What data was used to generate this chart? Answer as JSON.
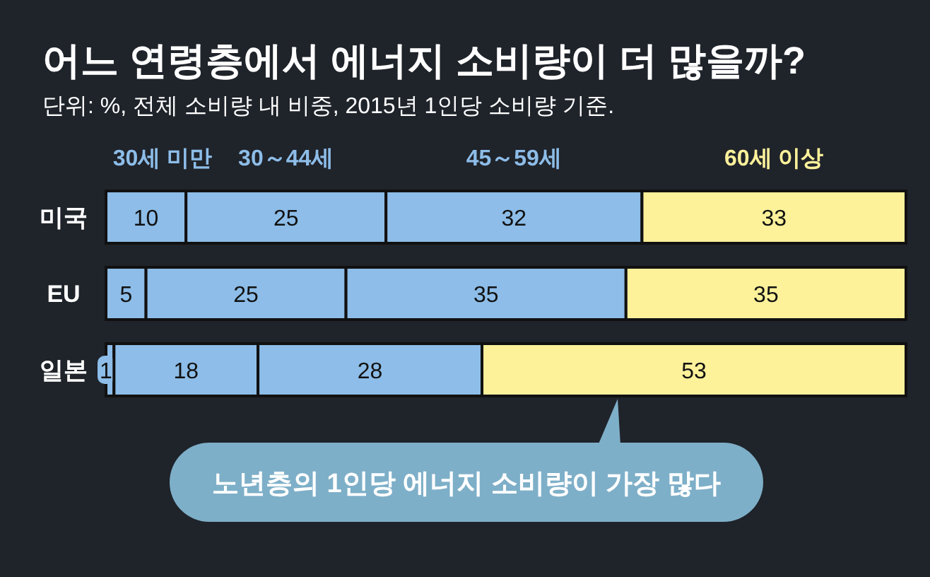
{
  "chart_data": {
    "type": "bar",
    "orientation": "horizontal",
    "stacked": true,
    "data_labels": true,
    "legend": "top",
    "title": "어느 연령층에서 에너지 소비량이 더 많을까?",
    "subtitle": "단위: %, 전체 소비량 내 비중, 2015년 1인당 소비량 기준.",
    "categories": [
      "미국",
      "EU",
      "일본"
    ],
    "series": [
      {
        "name": "30세 미만",
        "color": "#8dbde8",
        "values": [
          10,
          5,
          1
        ]
      },
      {
        "name": "30～44세",
        "color": "#8dbde8",
        "values": [
          25,
          25,
          18
        ]
      },
      {
        "name": "45～59세",
        "color": "#8dbde8",
        "values": [
          32,
          35,
          28
        ]
      },
      {
        "name": "60세 이상",
        "color": "#fdf19a",
        "values": [
          33,
          35,
          53
        ]
      }
    ],
    "annotations": [
      "노년층의 1인당 에너지 소비량이 가장 많다"
    ]
  }
}
